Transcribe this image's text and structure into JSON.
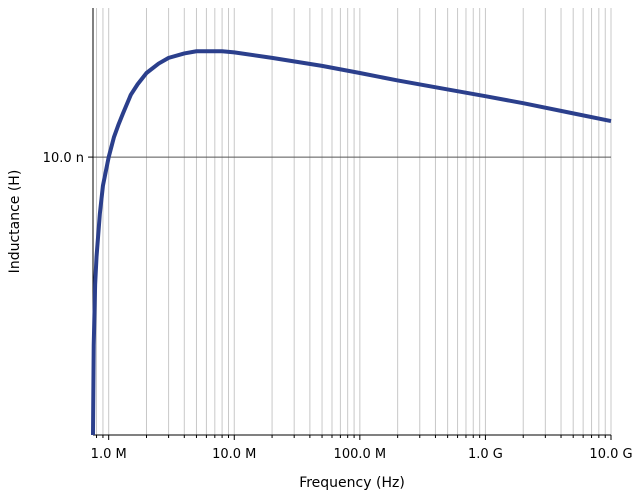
{
  "chart_data": {
    "type": "line",
    "title": "",
    "xlabel": "Frequency (Hz)",
    "ylabel": "Inductance (H)",
    "x_scale": "log",
    "y_scale": "log",
    "xlim": [
      750000,
      10000000000
    ],
    "ylim": [
      2.3e-09,
      2.2e-08
    ],
    "grid": true,
    "x_ticks": [
      {
        "value": 1000000,
        "label": "1.0 M"
      },
      {
        "value": 10000000,
        "label": "10.0 M"
      },
      {
        "value": 100000000,
        "label": "100.0 M"
      },
      {
        "value": 1000000000,
        "label": "1.0 G"
      },
      {
        "value": 10000000000,
        "label": "10.0 G"
      }
    ],
    "y_ticks": [
      {
        "value": 1e-08,
        "label": "10.0 n"
      }
    ],
    "series": [
      {
        "color": "#2b3f8c",
        "points": [
          [
            750000,
            2.3e-09
          ],
          [
            760000,
            3.7e-09
          ],
          [
            780000,
            5.1e-09
          ],
          [
            800000,
            5.9e-09
          ],
          [
            850000,
            7.4e-09
          ],
          [
            900000,
            8.6e-09
          ],
          [
            1000000,
            1e-08
          ],
          [
            1100000,
            1.11e-08
          ],
          [
            1200000,
            1.19e-08
          ],
          [
            1300000,
            1.26e-08
          ],
          [
            1500000,
            1.39e-08
          ],
          [
            1700000,
            1.47e-08
          ],
          [
            2000000,
            1.56e-08
          ],
          [
            2500000,
            1.64e-08
          ],
          [
            3000000,
            1.69e-08
          ],
          [
            4000000,
            1.73e-08
          ],
          [
            5000000,
            1.75e-08
          ],
          [
            6000000,
            1.75e-08
          ],
          [
            8000000,
            1.75e-08
          ],
          [
            10000000,
            1.74e-08
          ],
          [
            20000000,
            1.69e-08
          ],
          [
            50000000,
            1.62e-08
          ],
          [
            100000000,
            1.56e-08
          ],
          [
            200000000,
            1.5e-08
          ],
          [
            500000000,
            1.43e-08
          ],
          [
            1000000000,
            1.38e-08
          ],
          [
            2000000000,
            1.33e-08
          ],
          [
            5000000000,
            1.26e-08
          ],
          [
            10000000000,
            1.21e-08
          ]
        ]
      }
    ]
  }
}
